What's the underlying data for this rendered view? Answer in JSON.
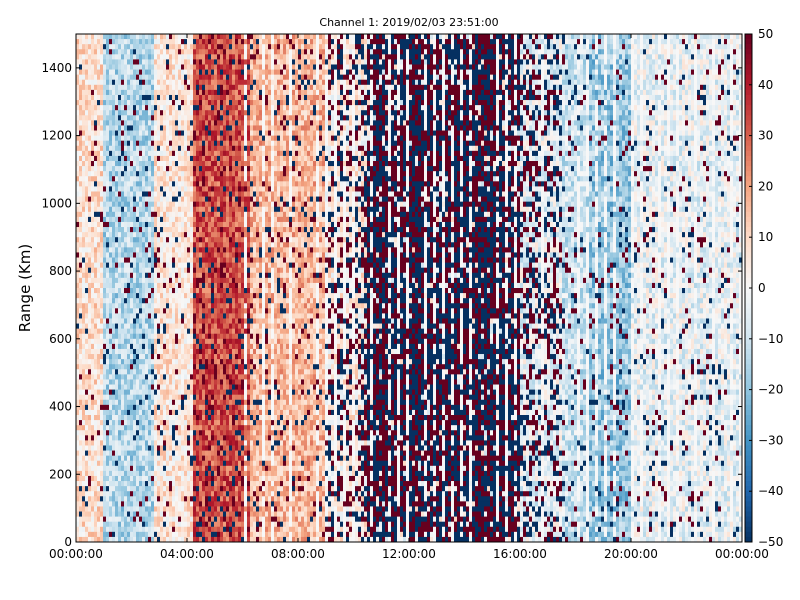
{
  "chart_data": {
    "type": "heatmap",
    "title": "Channel 1: 2019/02/03 23:51:00",
    "xlabel": "",
    "ylabel": "Range (Km)",
    "x_ticks": [
      "00:00:00",
      "04:00:00",
      "08:00:00",
      "12:00:00",
      "16:00:00",
      "20:00:00",
      "00:00:00"
    ],
    "y_ticks": [
      0,
      200,
      400,
      600,
      800,
      1000,
      1200,
      1400
    ],
    "ylim": [
      0,
      1500
    ],
    "colorbar": {
      "range": [
        -50,
        50
      ],
      "ticks": [
        50,
        40,
        30,
        20,
        10,
        0,
        -10,
        -20,
        -30,
        -40,
        -50
      ],
      "colormap": "RdBu_r",
      "low_color": "#053061",
      "mid_color": "#f7f7f7",
      "high_color": "#67001f"
    },
    "time_bands_hours": [
      {
        "from": 0,
        "to": 1,
        "mean": 8,
        "noise": 0.05
      },
      {
        "from": 1,
        "to": 2.8,
        "mean": -14,
        "noise": 0.08
      },
      {
        "from": 2.8,
        "to": 4.2,
        "mean": 6,
        "noise": 0.1
      },
      {
        "from": 4.2,
        "to": 6.3,
        "mean": 32,
        "noise": 0.15
      },
      {
        "from": 6.3,
        "to": 9,
        "mean": 16,
        "noise": 0.12
      },
      {
        "from": 9,
        "to": 10.5,
        "mean": 4,
        "noise": 0.45
      },
      {
        "from": 10.5,
        "to": 16,
        "mean": 0,
        "noise": 0.9
      },
      {
        "from": 16,
        "to": 17.5,
        "mean": -4,
        "noise": 0.4
      },
      {
        "from": 17.5,
        "to": 18.5,
        "mean": -10,
        "noise": 0.12
      },
      {
        "from": 18.5,
        "to": 20,
        "mean": -18,
        "noise": 0.1
      },
      {
        "from": 20,
        "to": 24,
        "mean": -4,
        "noise": 0.1
      }
    ]
  }
}
